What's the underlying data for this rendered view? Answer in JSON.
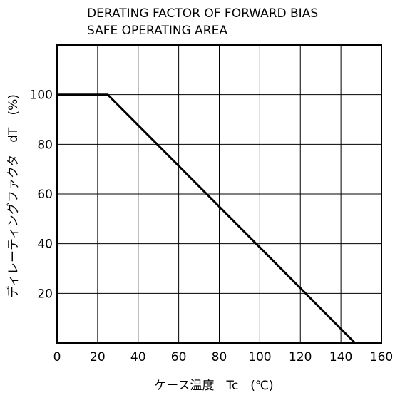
{
  "chart_data": {
    "type": "line",
    "title_lines": [
      "DERATING FACTOR OF FORWARD BIAS",
      "SAFE OPERATING AREA"
    ],
    "xlabel": "ケース温度　Tc　(℃)",
    "ylabel": "ディレーティングファクタ　dT　(%)",
    "xlim": [
      0,
      160
    ],
    "ylim": [
      0,
      120
    ],
    "x_ticks": [
      0,
      20,
      40,
      60,
      80,
      100,
      120,
      140,
      160
    ],
    "y_ticks": [
      20,
      40,
      60,
      80,
      100
    ],
    "x_tick_labels": [
      "0",
      "20",
      "40",
      "60",
      "80",
      "100",
      "120",
      "140",
      "160"
    ],
    "y_tick_labels": [
      "20",
      "40",
      "60",
      "80",
      "100"
    ],
    "grid": true,
    "series": [
      {
        "color": "#000000",
        "x": [
          0,
          25,
          147
        ],
        "y": [
          100,
          100,
          0
        ]
      }
    ]
  }
}
